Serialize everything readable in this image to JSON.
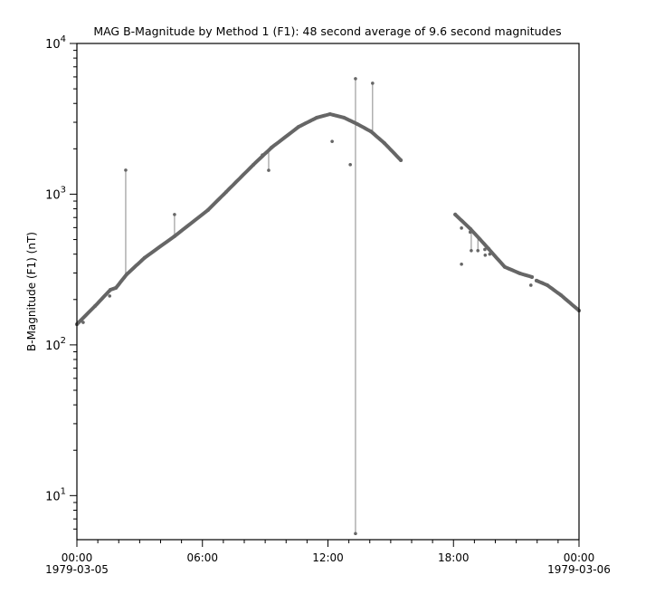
{
  "chart_data": {
    "type": "scatter",
    "title": "MAG  B-Magnitude by Method 1 (F1): 48 second average of 9.6 second magnitudes",
    "xlabel": "",
    "ylabel": "B-Magnitude (F1) (nT)",
    "yscale": "log",
    "ylim": [
      5.1,
      10000
    ],
    "xlim": [
      "1979-03-05 00:00",
      "1979-03-06 00:00"
    ],
    "grid": false,
    "point_color": "#666666",
    "x_ticks": [
      {
        "label": "00:00",
        "sublabel": "1979-03-05",
        "time": "1979-03-05 00:00"
      },
      {
        "label": "06:00",
        "sublabel": "",
        "time": "1979-03-05 06:00"
      },
      {
        "label": "12:00",
        "sublabel": "",
        "time": "1979-03-05 12:00"
      },
      {
        "label": "18:00",
        "sublabel": "",
        "time": "1979-03-05 18:00"
      },
      {
        "label": "00:00",
        "sublabel": "1979-03-06",
        "time": "1979-03-06 00:00"
      }
    ],
    "y_ticks": [
      {
        "base": "10",
        "exp": "1",
        "value": 10
      },
      {
        "base": "10",
        "exp": "2",
        "value": 100
      },
      {
        "base": "10",
        "exp": "3",
        "value": 1000
      },
      {
        "base": "10",
        "exp": "4",
        "value": 10000
      }
    ],
    "series": [
      {
        "segments": [
          [
            [
              "00:00",
              137
            ],
            [
              "00:52",
              181
            ],
            [
              "01:36",
              232
            ],
            [
              "01:52",
              239
            ],
            [
              "02:23",
              294
            ],
            [
              "03:14",
              378
            ],
            [
              "04:40",
              526
            ],
            [
              "06:16",
              785
            ],
            [
              "07:08",
              1035
            ],
            [
              "08:26",
              1567
            ],
            [
              "09:18",
              2037
            ],
            [
              "10:36",
              2800
            ],
            [
              "11:28",
              3220
            ],
            [
              "12:06",
              3400
            ],
            [
              "12:46",
              3220
            ],
            [
              "13:24",
              2920
            ],
            [
              "14:03",
              2610
            ],
            [
              "14:42",
              2180
            ],
            [
              "15:29",
              1680
            ]
          ],
          [
            [
              "18:05",
              733
            ],
            [
              "18:49",
              587
            ],
            [
              "19:41",
              433
            ],
            [
              "20:27",
              329
            ],
            [
              "21:11",
              298
            ],
            [
              "21:45",
              282
            ]
          ],
          [
            [
              "21:58",
              267
            ],
            [
              "22:29",
              249
            ],
            [
              "23:08",
              214
            ],
            [
              "24:00",
              169
            ]
          ]
        ]
      }
    ],
    "outliers": [
      {
        "time": "00:18",
        "value": 141,
        "connected": false
      },
      {
        "time": "01:34",
        "value": 211,
        "connected": false
      },
      {
        "time": "02:20",
        "value": 1443,
        "connected": true
      },
      {
        "time": "04:40",
        "value": 733,
        "connected": true
      },
      {
        "time": "08:52",
        "value": 1820,
        "connected": false
      },
      {
        "time": "09:10",
        "value": 1440,
        "connected": true
      },
      {
        "time": "12:12",
        "value": 2240,
        "connected": false
      },
      {
        "time": "13:04",
        "value": 1570,
        "connected": false
      },
      {
        "time": "13:19",
        "value": 5840,
        "connected": true
      },
      {
        "time": "13:19",
        "value": 5.6,
        "connected": true
      },
      {
        "time": "14:08",
        "value": 5450,
        "connected": true
      },
      {
        "time": "18:23",
        "value": 343,
        "connected": false
      },
      {
        "time": "18:23",
        "value": 596,
        "connected": false
      },
      {
        "time": "18:48",
        "value": 560,
        "connected": false
      },
      {
        "time": "18:51",
        "value": 422,
        "connected": true
      },
      {
        "time": "19:10",
        "value": 422,
        "connected": true
      },
      {
        "time": "19:30",
        "value": 430,
        "connected": false
      },
      {
        "time": "19:31",
        "value": 394,
        "connected": false
      },
      {
        "time": "19:44",
        "value": 400,
        "connected": false
      },
      {
        "time": "21:42",
        "value": 249,
        "connected": false
      }
    ]
  }
}
